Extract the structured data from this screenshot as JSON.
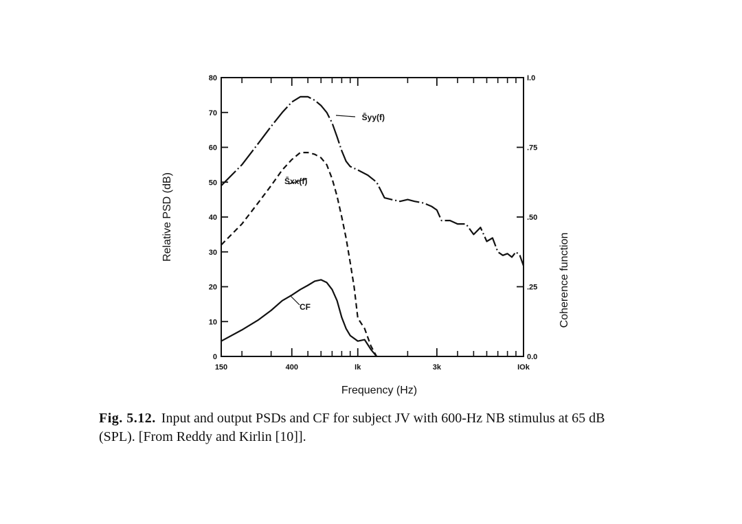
{
  "chart_data": {
    "type": "line",
    "xlabel": "Frequency (Hz)",
    "ylabel": "Relative PSD (dB)",
    "y2label": "Coherence function",
    "x_scale": "log",
    "xlim": [
      150,
      10000
    ],
    "ylim": [
      0,
      80
    ],
    "y2lim": [
      0.0,
      1.0
    ],
    "grid": false,
    "x_tick_labels": [
      {
        "value": 150,
        "label": "150"
      },
      {
        "value": 400,
        "label": "400"
      },
      {
        "value": 1000,
        "label": "Ik"
      },
      {
        "value": 3000,
        "label": "3k"
      },
      {
        "value": 10000,
        "label": "IOk"
      }
    ],
    "y_tick_labels": [
      "0",
      "10",
      "20",
      "30",
      "40",
      "50",
      "60",
      "70",
      "80"
    ],
    "y2_tick_labels": [
      {
        "value": 0.0,
        "label": "0.0"
      },
      {
        "value": 0.25,
        "label": ".25"
      },
      {
        "value": 0.5,
        "label": ".50"
      },
      {
        "value": 0.75,
        "label": ".75"
      },
      {
        "value": 1.0,
        "label": "I.0"
      }
    ],
    "series": [
      {
        "name": "S̄yy(f)",
        "style": "dash-dot",
        "axis": "left",
        "points": [
          [
            150,
            49
          ],
          [
            200,
            55
          ],
          [
            250,
            61
          ],
          [
            300,
            66
          ],
          [
            350,
            70
          ],
          [
            400,
            73
          ],
          [
            450,
            74.5
          ],
          [
            500,
            74.5
          ],
          [
            550,
            73.5
          ],
          [
            600,
            72
          ],
          [
            650,
            70
          ],
          [
            700,
            67
          ],
          [
            750,
            63
          ],
          [
            800,
            59
          ],
          [
            850,
            56
          ],
          [
            900,
            54.5
          ],
          [
            1000,
            53.5
          ],
          [
            1150,
            52
          ],
          [
            1300,
            50
          ],
          [
            1450,
            45.5
          ],
          [
            1600,
            45
          ],
          [
            1800,
            44.5
          ],
          [
            2000,
            45
          ],
          [
            2200,
            44.5
          ],
          [
            2500,
            44
          ],
          [
            2800,
            43
          ],
          [
            3000,
            42
          ],
          [
            3200,
            39
          ],
          [
            3600,
            39
          ],
          [
            4000,
            38
          ],
          [
            4500,
            38
          ],
          [
            5000,
            35
          ],
          [
            5500,
            37
          ],
          [
            6000,
            33
          ],
          [
            6500,
            34
          ],
          [
            7000,
            30
          ],
          [
            7500,
            29
          ],
          [
            8000,
            29.5
          ],
          [
            8500,
            28.5
          ],
          [
            9000,
            30
          ],
          [
            9500,
            29
          ],
          [
            10000,
            26
          ]
        ]
      },
      {
        "name": "S̄xx(f)",
        "style": "dashed",
        "axis": "left",
        "points": [
          [
            150,
            32
          ],
          [
            200,
            38
          ],
          [
            250,
            44
          ],
          [
            300,
            49
          ],
          [
            350,
            53.5
          ],
          [
            400,
            56.5
          ],
          [
            450,
            58.5
          ],
          [
            500,
            58.5
          ],
          [
            550,
            58
          ],
          [
            600,
            57
          ],
          [
            650,
            55
          ],
          [
            700,
            51
          ],
          [
            750,
            46
          ],
          [
            800,
            40
          ],
          [
            850,
            34
          ],
          [
            900,
            27
          ],
          [
            950,
            20
          ],
          [
            1000,
            11
          ],
          [
            1100,
            8
          ],
          [
            1200,
            3
          ],
          [
            1300,
            0
          ]
        ]
      },
      {
        "name": "CF",
        "style": "solid",
        "axis": "right",
        "points": [
          [
            150,
            0.055
          ],
          [
            200,
            0.095
          ],
          [
            250,
            0.13
          ],
          [
            300,
            0.165
          ],
          [
            350,
            0.2
          ],
          [
            400,
            0.22
          ],
          [
            450,
            0.24
          ],
          [
            500,
            0.255
          ],
          [
            550,
            0.27
          ],
          [
            600,
            0.275
          ],
          [
            650,
            0.265
          ],
          [
            700,
            0.24
          ],
          [
            750,
            0.2
          ],
          [
            800,
            0.14
          ],
          [
            850,
            0.1
          ],
          [
            900,
            0.075
          ],
          [
            1000,
            0.055
          ],
          [
            1100,
            0.06
          ],
          [
            1200,
            0.025
          ],
          [
            1300,
            0.0
          ]
        ]
      }
    ]
  },
  "caption": {
    "label": "Fig. 5.12.",
    "text": "Input and output PSDs and CF for subject JV with 600-Hz NB stimulus at 65 dB (SPL). [From Reddy and Kirlin [10]]."
  }
}
